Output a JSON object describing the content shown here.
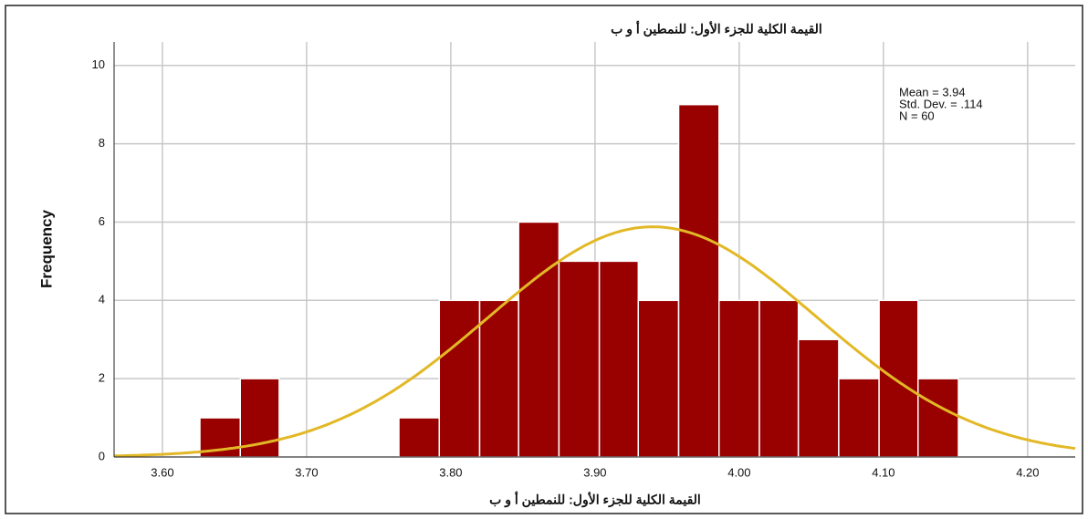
{
  "chart_data": {
    "type": "histogram",
    "title": "القيمة الكلية للجزء الأول: للنمطين أ و ب",
    "x_label": "القيمة الكلية للجزء الأول: للنمطين أ و ب",
    "y_label": "Frequency",
    "bins": [
      3.626,
      3.654,
      3.681,
      3.709,
      3.737,
      3.764,
      3.792,
      3.82,
      3.847,
      3.875,
      3.903,
      3.93,
      3.958,
      3.986,
      4.014,
      4.041,
      4.069,
      4.097,
      4.124,
      4.152
    ],
    "counts": [
      1,
      2,
      0,
      0,
      0,
      1,
      4,
      4,
      6,
      5,
      5,
      4,
      9,
      4,
      4,
      3,
      2,
      4,
      2
    ],
    "color": "#990000",
    "curve": {
      "mean": 3.94,
      "sd": 0.114,
      "n": 60,
      "color": "#e2b826"
    },
    "annotations": [
      "Mean = 3.94",
      "Std. Dev. = .114",
      "N = 60"
    ],
    "xlim": [
      3.5665,
      4.233
    ],
    "xticks": [
      {
        "value": 3.6,
        "label": "3.60"
      },
      {
        "value": 3.7,
        "label": "3.70"
      },
      {
        "value": 3.8,
        "label": "3.80"
      },
      {
        "value": 3.9,
        "label": "3.90"
      },
      {
        "value": 4.0,
        "label": "4.00"
      },
      {
        "value": 4.1,
        "label": "4.10"
      },
      {
        "value": 4.2,
        "label": "4.20"
      }
    ],
    "ylim": [
      0,
      10.6
    ],
    "yticks": [
      0,
      2,
      4,
      6,
      8,
      10
    ],
    "grid": true
  }
}
